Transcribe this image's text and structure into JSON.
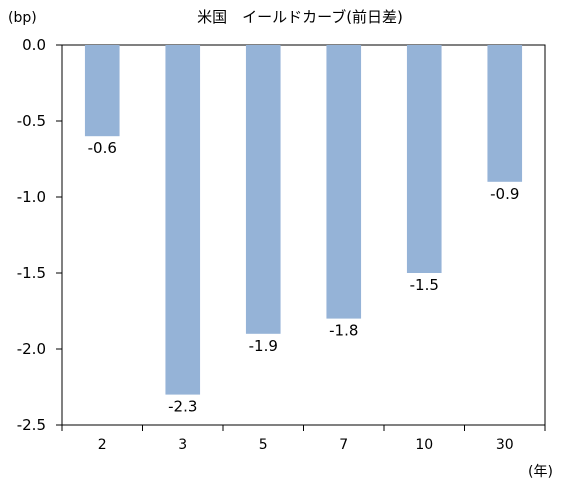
{
  "chart_data": {
    "type": "bar",
    "title": "米国　イールドカーブ(前日差)",
    "y_unit": "(bp)",
    "x_unit": "(年)",
    "categories": [
      "2",
      "3",
      "5",
      "7",
      "10",
      "30"
    ],
    "values": [
      -0.6,
      -2.3,
      -1.9,
      -1.8,
      -1.5,
      -0.9
    ],
    "data_labels": [
      "-0.6",
      "-2.3",
      "-1.9",
      "-1.8",
      "-1.5",
      "-0.9"
    ],
    "y_ticks": [
      "0.0",
      "-0.5",
      "-1.0",
      "-1.5",
      "-2.0",
      "-2.5"
    ],
    "ylim": [
      -2.5,
      0
    ],
    "bar_color": "#95b3d7",
    "grid": false,
    "legend": "none"
  }
}
